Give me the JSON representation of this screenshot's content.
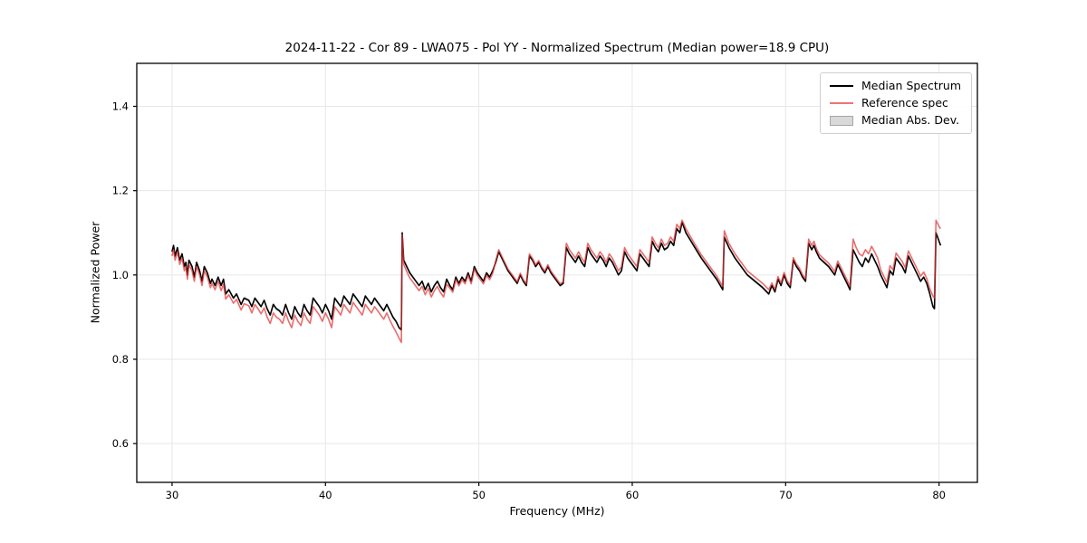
{
  "chart_data": {
    "type": "line",
    "title": "2024-11-22 - Cor 89 - LWA075 - Pol YY - Normalized Spectrum (Median power=18.9 CPU)",
    "xlabel": "Frequency (MHz)",
    "ylabel": "Normalized Power",
    "xlim": [
      27.7,
      82.5
    ],
    "ylim": [
      0.508,
      1.502
    ],
    "xticks": [
      30,
      40,
      50,
      60,
      70,
      80
    ],
    "yticks": [
      0.6,
      0.8,
      1.0,
      1.2,
      1.4
    ],
    "xtick_labels": [
      "30",
      "40",
      "50",
      "60",
      "70",
      "80"
    ],
    "ytick_labels": [
      "0.6",
      "0.8",
      "1.0",
      "1.2",
      "1.4"
    ],
    "grid": true,
    "grid_color": "#e7e7e7",
    "spine_color": "#000000",
    "legend_position": "upper right",
    "series": [
      {
        "name": "Median Spectrum",
        "color": "#000000",
        "width": 1.6,
        "legend_color": "#000000"
      },
      {
        "name": "Reference spec",
        "color": "#e03535",
        "opacity": 0.72,
        "width": 1.6,
        "legend_color": "#ee7373"
      },
      {
        "name": "Median Abs. Dev.",
        "color": "#d9d9d9",
        "border": "#a6a6a6",
        "band_halfwidth": 0.004
      }
    ],
    "points_format": [
      "frequency_mhz",
      "median_spectrum",
      "reference_spec"
    ],
    "points": [
      [
        30.0,
        1.055,
        1.045
      ],
      [
        30.1,
        1.07,
        1.06
      ],
      [
        30.2,
        1.045,
        1.035
      ],
      [
        30.35,
        1.065,
        1.055
      ],
      [
        30.5,
        1.035,
        1.025
      ],
      [
        30.65,
        1.05,
        1.04
      ],
      [
        30.8,
        1.02,
        1.01
      ],
      [
        30.9,
        1.03,
        1.02
      ],
      [
        31.0,
        1.0,
        0.99
      ],
      [
        31.1,
        1.035,
        1.025
      ],
      [
        31.3,
        1.02,
        1.01
      ],
      [
        31.45,
        0.995,
        0.985
      ],
      [
        31.6,
        1.03,
        1.02
      ],
      [
        31.8,
        1.01,
        1.0
      ],
      [
        31.95,
        0.985,
        0.975
      ],
      [
        32.1,
        1.02,
        1.01
      ],
      [
        32.3,
        1.005,
        0.995
      ],
      [
        32.5,
        0.98,
        0.97
      ],
      [
        32.6,
        0.99,
        0.98
      ],
      [
        32.8,
        0.975,
        0.965
      ],
      [
        33.0,
        0.995,
        0.985
      ],
      [
        33.2,
        0.975,
        0.963
      ],
      [
        33.35,
        0.99,
        0.978
      ],
      [
        33.5,
        0.955,
        0.943
      ],
      [
        33.7,
        0.965,
        0.953
      ],
      [
        34.0,
        0.945,
        0.933
      ],
      [
        34.2,
        0.955,
        0.942
      ],
      [
        34.5,
        0.93,
        0.917
      ],
      [
        34.7,
        0.945,
        0.932
      ],
      [
        35.0,
        0.94,
        0.927
      ],
      [
        35.2,
        0.925,
        0.91
      ],
      [
        35.4,
        0.945,
        0.93
      ],
      [
        35.6,
        0.935,
        0.92
      ],
      [
        35.8,
        0.925,
        0.908
      ],
      [
        36.0,
        0.94,
        0.922
      ],
      [
        36.2,
        0.92,
        0.9
      ],
      [
        36.4,
        0.905,
        0.885
      ],
      [
        36.6,
        0.93,
        0.91
      ],
      [
        36.8,
        0.92,
        0.9
      ],
      [
        37.0,
        0.915,
        0.895
      ],
      [
        37.2,
        0.905,
        0.885
      ],
      [
        37.4,
        0.93,
        0.91
      ],
      [
        37.6,
        0.91,
        0.89
      ],
      [
        37.8,
        0.895,
        0.875
      ],
      [
        38.0,
        0.925,
        0.905
      ],
      [
        38.2,
        0.91,
        0.89
      ],
      [
        38.4,
        0.9,
        0.88
      ],
      [
        38.6,
        0.93,
        0.91
      ],
      [
        38.8,
        0.915,
        0.895
      ],
      [
        39.0,
        0.905,
        0.885
      ],
      [
        39.2,
        0.945,
        0.925
      ],
      [
        39.4,
        0.935,
        0.915
      ],
      [
        39.6,
        0.925,
        0.905
      ],
      [
        39.8,
        0.91,
        0.89
      ],
      [
        40.0,
        0.93,
        0.91
      ],
      [
        40.2,
        0.915,
        0.895
      ],
      [
        40.4,
        0.895,
        0.875
      ],
      [
        40.6,
        0.945,
        0.925
      ],
      [
        40.8,
        0.935,
        0.915
      ],
      [
        41.0,
        0.925,
        0.905
      ],
      [
        41.2,
        0.95,
        0.93
      ],
      [
        41.4,
        0.94,
        0.92
      ],
      [
        41.6,
        0.93,
        0.91
      ],
      [
        41.8,
        0.955,
        0.935
      ],
      [
        42.0,
        0.945,
        0.925
      ],
      [
        42.2,
        0.935,
        0.915
      ],
      [
        42.4,
        0.925,
        0.905
      ],
      [
        42.6,
        0.95,
        0.93
      ],
      [
        42.8,
        0.94,
        0.92
      ],
      [
        43.0,
        0.93,
        0.91
      ],
      [
        43.2,
        0.945,
        0.925
      ],
      [
        43.4,
        0.935,
        0.915
      ],
      [
        43.6,
        0.925,
        0.905
      ],
      [
        43.8,
        0.915,
        0.895
      ],
      [
        44.0,
        0.93,
        0.91
      ],
      [
        44.2,
        0.915,
        0.893
      ],
      [
        44.4,
        0.9,
        0.878
      ],
      [
        44.6,
        0.89,
        0.865
      ],
      [
        44.8,
        0.875,
        0.85
      ],
      [
        44.95,
        0.87,
        0.84
      ],
      [
        45.0,
        1.1,
        1.095
      ],
      [
        45.1,
        1.035,
        1.025
      ],
      [
        45.3,
        1.02,
        1.008
      ],
      [
        45.5,
        1.005,
        0.993
      ],
      [
        45.7,
        0.995,
        0.983
      ],
      [
        45.9,
        0.985,
        0.973
      ],
      [
        46.1,
        0.975,
        0.963
      ],
      [
        46.3,
        0.985,
        0.973
      ],
      [
        46.5,
        0.965,
        0.953
      ],
      [
        46.7,
        0.98,
        0.968
      ],
      [
        46.9,
        0.96,
        0.948
      ],
      [
        47.1,
        0.975,
        0.963
      ],
      [
        47.3,
        0.985,
        0.973
      ],
      [
        47.5,
        0.97,
        0.958
      ],
      [
        47.7,
        0.96,
        0.948
      ],
      [
        47.9,
        0.99,
        0.978
      ],
      [
        48.1,
        0.975,
        0.969
      ],
      [
        48.3,
        0.965,
        0.959
      ],
      [
        48.5,
        0.995,
        0.989
      ],
      [
        48.7,
        0.98,
        0.974
      ],
      [
        48.9,
        0.995,
        0.989
      ],
      [
        49.1,
        0.985,
        0.979
      ],
      [
        49.3,
        1.005,
        0.999
      ],
      [
        49.5,
        0.985,
        0.979
      ],
      [
        49.7,
        1.02,
        1.014
      ],
      [
        49.9,
        1.005,
        0.999
      ],
      [
        50.1,
        0.995,
        0.989
      ],
      [
        50.3,
        0.985,
        0.979
      ],
      [
        50.5,
        1.005,
        0.999
      ],
      [
        50.7,
        0.995,
        0.989
      ],
      [
        50.9,
        1.01,
        1.004
      ],
      [
        51.1,
        1.03,
        1.034
      ],
      [
        51.3,
        1.055,
        1.06
      ],
      [
        51.5,
        1.04,
        1.044
      ],
      [
        51.7,
        1.025,
        1.029
      ],
      [
        51.9,
        1.01,
        1.014
      ],
      [
        52.1,
        1.0,
        1.004
      ],
      [
        52.3,
        0.99,
        0.994
      ],
      [
        52.5,
        0.98,
        0.984
      ],
      [
        52.7,
        1.0,
        1.004
      ],
      [
        52.9,
        0.985,
        0.989
      ],
      [
        53.1,
        0.975,
        0.979
      ],
      [
        53.3,
        1.045,
        1.05
      ],
      [
        53.5,
        1.035,
        1.039
      ],
      [
        53.7,
        1.02,
        1.024
      ],
      [
        53.9,
        1.03,
        1.034
      ],
      [
        54.1,
        1.015,
        1.019
      ],
      [
        54.3,
        1.005,
        1.009
      ],
      [
        54.5,
        1.02,
        1.024
      ],
      [
        54.7,
        1.005,
        1.009
      ],
      [
        54.9,
        0.995,
        0.999
      ],
      [
        55.1,
        0.985,
        0.989
      ],
      [
        55.3,
        0.975,
        0.979
      ],
      [
        55.5,
        0.98,
        0.984
      ],
      [
        55.7,
        1.065,
        1.075
      ],
      [
        55.9,
        1.05,
        1.06
      ],
      [
        56.1,
        1.04,
        1.05
      ],
      [
        56.3,
        1.03,
        1.04
      ],
      [
        56.5,
        1.045,
        1.055
      ],
      [
        56.7,
        1.03,
        1.04
      ],
      [
        56.9,
        1.02,
        1.03
      ],
      [
        57.1,
        1.065,
        1.075
      ],
      [
        57.3,
        1.05,
        1.06
      ],
      [
        57.5,
        1.04,
        1.05
      ],
      [
        57.7,
        1.03,
        1.04
      ],
      [
        57.9,
        1.045,
        1.055
      ],
      [
        58.1,
        1.035,
        1.045
      ],
      [
        58.3,
        1.02,
        1.03
      ],
      [
        58.5,
        1.04,
        1.05
      ],
      [
        58.7,
        1.03,
        1.04
      ],
      [
        58.9,
        1.015,
        1.025
      ],
      [
        59.1,
        1.0,
        1.01
      ],
      [
        59.3,
        1.01,
        1.02
      ],
      [
        59.5,
        1.055,
        1.065
      ],
      [
        59.7,
        1.04,
        1.05
      ],
      [
        59.9,
        1.03,
        1.04
      ],
      [
        60.1,
        1.02,
        1.03
      ],
      [
        60.3,
        1.01,
        1.02
      ],
      [
        60.5,
        1.05,
        1.06
      ],
      [
        60.7,
        1.04,
        1.05
      ],
      [
        60.9,
        1.03,
        1.04
      ],
      [
        61.1,
        1.02,
        1.03
      ],
      [
        61.3,
        1.08,
        1.09
      ],
      [
        61.5,
        1.065,
        1.075
      ],
      [
        61.7,
        1.055,
        1.065
      ],
      [
        61.9,
        1.075,
        1.085
      ],
      [
        62.1,
        1.06,
        1.07
      ],
      [
        62.3,
        1.065,
        1.075
      ],
      [
        62.5,
        1.08,
        1.09
      ],
      [
        62.7,
        1.07,
        1.08
      ],
      [
        62.9,
        1.11,
        1.12
      ],
      [
        63.1,
        1.1,
        1.11
      ],
      [
        63.25,
        1.125,
        1.13
      ],
      [
        63.5,
        1.1,
        1.11
      ],
      [
        64.0,
        1.07,
        1.078
      ],
      [
        64.5,
        1.04,
        1.048
      ],
      [
        65.0,
        1.015,
        1.023
      ],
      [
        65.5,
        0.99,
        0.998
      ],
      [
        65.9,
        0.965,
        0.973
      ],
      [
        66.0,
        1.09,
        1.105
      ],
      [
        66.3,
        1.065,
        1.075
      ],
      [
        66.7,
        1.04,
        1.05
      ],
      [
        67.0,
        1.025,
        1.035
      ],
      [
        67.5,
        1.0,
        1.01
      ],
      [
        68.0,
        0.985,
        0.995
      ],
      [
        68.5,
        0.97,
        0.98
      ],
      [
        68.9,
        0.955,
        0.965
      ],
      [
        69.1,
        0.975,
        0.981
      ],
      [
        69.3,
        0.96,
        0.966
      ],
      [
        69.5,
        0.99,
        0.996
      ],
      [
        69.7,
        0.975,
        0.981
      ],
      [
        69.9,
        1.0,
        1.006
      ],
      [
        70.1,
        0.98,
        0.986
      ],
      [
        70.3,
        0.97,
        0.976
      ],
      [
        70.5,
        1.035,
        1.041
      ],
      [
        70.7,
        1.02,
        1.026
      ],
      [
        70.9,
        1.01,
        1.016
      ],
      [
        71.1,
        0.995,
        1.001
      ],
      [
        71.3,
        0.985,
        0.991
      ],
      [
        71.5,
        1.075,
        1.085
      ],
      [
        71.7,
        1.06,
        1.07
      ],
      [
        71.85,
        1.07,
        1.08
      ],
      [
        72.0,
        1.055,
        1.063
      ],
      [
        72.2,
        1.04,
        1.048
      ],
      [
        72.5,
        1.03,
        1.038
      ],
      [
        72.8,
        1.02,
        1.028
      ],
      [
        73.0,
        1.01,
        1.018
      ],
      [
        73.2,
        1.0,
        1.008
      ],
      [
        73.4,
        1.025,
        1.033
      ],
      [
        73.6,
        1.01,
        1.018
      ],
      [
        73.8,
        0.995,
        1.003
      ],
      [
        74.0,
        0.98,
        0.988
      ],
      [
        74.2,
        0.965,
        0.973
      ],
      [
        74.4,
        1.06,
        1.085
      ],
      [
        74.6,
        1.045,
        1.065
      ],
      [
        74.8,
        1.03,
        1.05
      ],
      [
        75.0,
        1.02,
        1.045
      ],
      [
        75.2,
        1.04,
        1.06
      ],
      [
        75.4,
        1.03,
        1.05
      ],
      [
        75.6,
        1.05,
        1.068
      ],
      [
        75.8,
        1.035,
        1.055
      ],
      [
        76.0,
        1.02,
        1.04
      ],
      [
        76.2,
        1.0,
        1.012
      ],
      [
        76.4,
        0.985,
        0.997
      ],
      [
        76.6,
        0.97,
        0.982
      ],
      [
        76.8,
        1.01,
        1.022
      ],
      [
        77.0,
        1.0,
        1.012
      ],
      [
        77.2,
        1.04,
        1.052
      ],
      [
        77.4,
        1.03,
        1.042
      ],
      [
        77.6,
        1.02,
        1.032
      ],
      [
        77.8,
        1.005,
        1.017
      ],
      [
        78.0,
        1.045,
        1.057
      ],
      [
        78.2,
        1.03,
        1.042
      ],
      [
        78.4,
        1.015,
        1.027
      ],
      [
        78.6,
        1.0,
        1.012
      ],
      [
        78.8,
        0.985,
        0.997
      ],
      [
        79.0,
        0.995,
        1.007
      ],
      [
        79.2,
        0.98,
        0.992
      ],
      [
        79.4,
        0.955,
        0.967
      ],
      [
        79.6,
        0.925,
        0.95
      ],
      [
        79.7,
        0.92,
        0.945
      ],
      [
        79.8,
        1.1,
        1.13
      ],
      [
        80.0,
        1.08,
        1.115
      ],
      [
        80.1,
        1.07,
        1.11
      ]
    ]
  }
}
